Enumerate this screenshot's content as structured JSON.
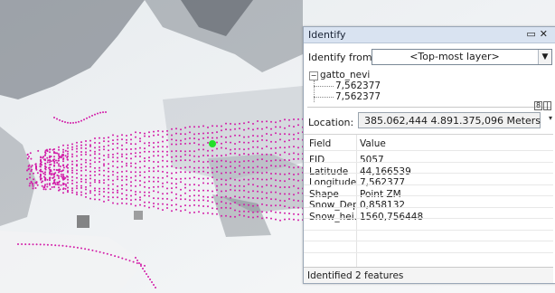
{
  "panel": {
    "title": "Identify",
    "identify_from_label": "Identify from:",
    "layer_selected": "<Top-most layer>",
    "tree": {
      "layer": "gatto_nevi",
      "children": [
        "7,562377",
        "7,562377"
      ]
    },
    "location_label": "Location:",
    "location_value": "385.062,444  4.891.375,096 Meters",
    "columns": {
      "field": "Field",
      "value": "Value"
    },
    "rows": [
      {
        "field": "FID",
        "value": "5057"
      },
      {
        "field": "Latitude",
        "value": "44,166539"
      },
      {
        "field": "Longitude",
        "value": "7,562377"
      },
      {
        "field": "Shape",
        "value": "Point ZM"
      },
      {
        "field": "Snow_Depth",
        "value": "0,858132"
      },
      {
        "field": "Snow_hei...",
        "value": "1560,756448"
      }
    ],
    "status": "Identified 2 features"
  },
  "colors": {
    "track_points": "#d21ea8",
    "selected_point": "#22e02a",
    "titlebar": "#d9e3f1"
  },
  "icons": [
    "minimize-icon",
    "close-icon",
    "dropdown-arrow-icon",
    "collapse-tree-icon"
  ]
}
